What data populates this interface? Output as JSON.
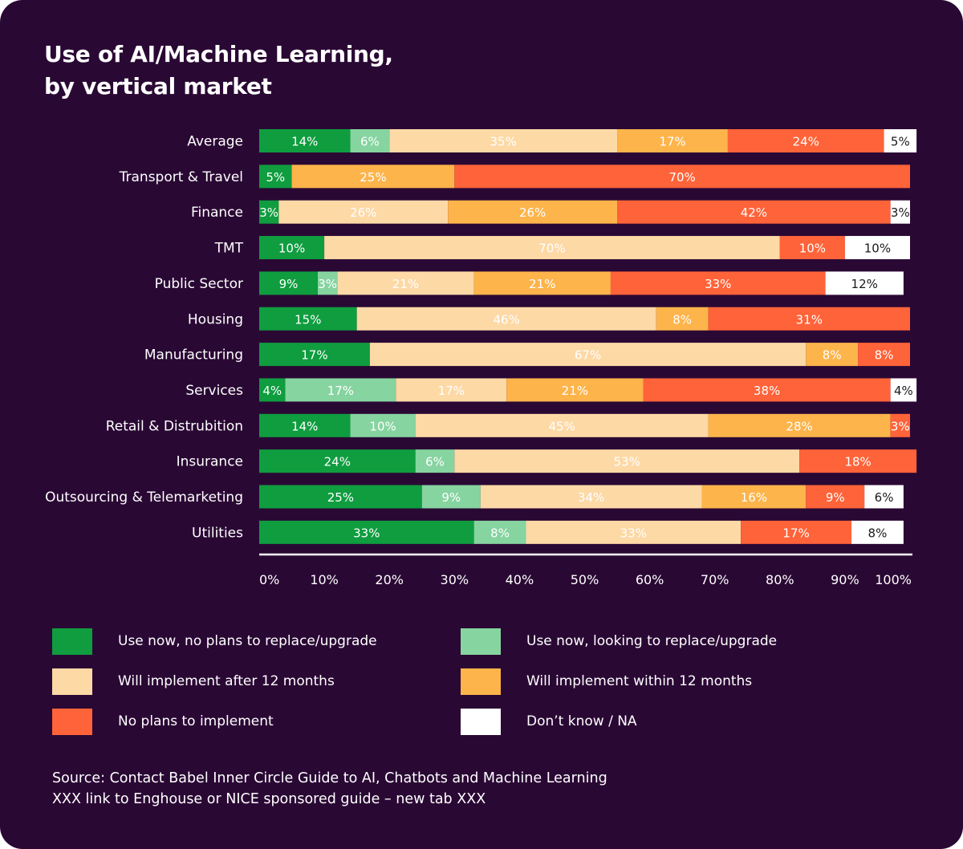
{
  "title": {
    "line1": "Use of AI/Machine Learning,",
    "line2": "by vertical market"
  },
  "chart_data": {
    "type": "bar",
    "orientation": "horizontal",
    "stacked": true,
    "categories": [
      "Average",
      "Transport & Travel",
      "Finance",
      "TMT",
      "Public Sector",
      "Housing",
      "Manufacturing",
      "Services",
      "Retail & Distrubition",
      "Insurance",
      "Outsourcing  & Telemarketing",
      "Utilities"
    ],
    "series": [
      {
        "name": "Use now, no plans to replace/upgrade",
        "color": "#0f9d3f",
        "label_color": "#ffffff",
        "values": [
          14,
          5,
          3,
          10,
          9,
          15,
          17,
          4,
          14,
          24,
          25,
          33
        ]
      },
      {
        "name": "Use now, looking to replace/upgrade",
        "color": "#86d4a0",
        "label_color": "#ffffff",
        "values": [
          6,
          0,
          0,
          0,
          3,
          0,
          0,
          17,
          10,
          6,
          9,
          8
        ]
      },
      {
        "name": "Will implement after 12 months",
        "color": "#fdd9a6",
        "label_color": "#ffffff",
        "values": [
          35,
          0,
          26,
          70,
          21,
          46,
          67,
          17,
          45,
          53,
          34,
          33
        ]
      },
      {
        "name": "Will implement within 12 months",
        "color": "#fdb44b",
        "label_color": "#ffffff",
        "values": [
          17,
          25,
          26,
          0,
          21,
          8,
          8,
          21,
          28,
          0,
          16,
          0
        ]
      },
      {
        "name": "No plans to implement",
        "color": "#ff6339",
        "label_color": "#ffffff",
        "values": [
          24,
          70,
          42,
          10,
          33,
          31,
          8,
          38,
          3,
          18,
          9,
          17
        ]
      },
      {
        "name": "Don’t know / NA",
        "color": "#ffffff",
        "label_color": "#1a1a1a",
        "values": [
          5,
          0,
          3,
          10,
          12,
          0,
          0,
          4,
          0,
          0,
          6,
          8
        ]
      }
    ],
    "xlim": [
      0,
      100
    ],
    "x_ticks": [
      "0%",
      "10%",
      "20%",
      "30%",
      "40%",
      "50%",
      "60%",
      "70%",
      "80%",
      "90%",
      "100%"
    ],
    "value_suffix": "%",
    "legend_position": "bottom",
    "grid": false
  },
  "legend": {
    "items": [
      {
        "label": "Use now, no plans to replace/upgrade",
        "color": "#0f9d3f"
      },
      {
        "label": "Use now, looking to replace/upgrade",
        "color": "#86d4a0"
      },
      {
        "label": "Will implement after 12 months",
        "color": "#fdd9a6"
      },
      {
        "label": "Will implement within 12 months",
        "color": "#fdb44b"
      },
      {
        "label": "No plans to implement",
        "color": "#ff6339"
      },
      {
        "label": "Don’t know / NA",
        "color": "#ffffff"
      }
    ]
  },
  "source": {
    "line1": "Source: Contact Babel Inner Circle Guide to AI, Chatbots and Machine Learning",
    "line2": "XXX link to Enghouse or NICE sponsored guide – new tab XXX"
  },
  "colors": {
    "background": "#2a0834",
    "text": "#ffffff"
  }
}
